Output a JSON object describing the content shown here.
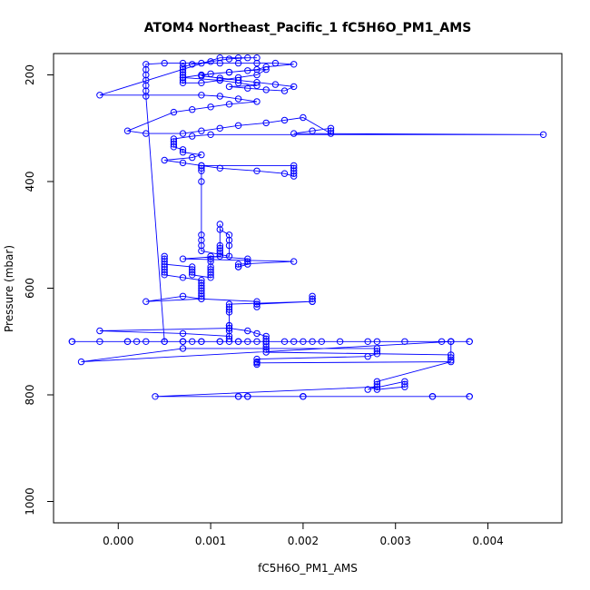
{
  "chart_data": {
    "type": "scatter",
    "title": "ATOM4 Northeast_Pacific_1 fC5H6O_PM1_AMS",
    "xlabel": "fC5H6O_PM1_AMS",
    "ylabel": "Pressure (mbar)",
    "xlim": [
      -0.0007,
      0.0048
    ],
    "ylim": [
      1040,
      160
    ],
    "y_reversed": true,
    "x_ticks": [
      0.0,
      0.001,
      0.002,
      0.003,
      0.004
    ],
    "x_tick_labels": [
      "0.000",
      "0.001",
      "0.002",
      "0.003",
      "0.004"
    ],
    "y_ticks": [
      200,
      400,
      600,
      800,
      1000
    ],
    "y_tick_labels": [
      "200",
      "400",
      "600",
      "800",
      "1000"
    ],
    "grid": false,
    "marker": "open-circle",
    "connected": true,
    "color": "#0000ff",
    "series": [
      {
        "x": [
          -0.0005,
          0.0007,
          0.0012,
          0.0009,
          0.0011,
          0.0014,
          0.0013,
          0.0007,
          0.0005,
          0.0003,
          0.0003,
          0.0003,
          0.0003,
          0.0003,
          0.0003,
          0.0003,
          0.0005,
          0.0007,
          0.0009,
          0.0011,
          0.0013,
          0.0015,
          0.0017,
          0.0019,
          0.0016,
          0.0015,
          0.0012,
          0.0009,
          0.0007,
          0.0011,
          0.0013,
          0.0015,
          0.0012,
          0.0014,
          0.0016,
          0.0018,
          0.0019,
          0.0017,
          0.0015,
          0.0013,
          0.0011,
          0.0009,
          0.001,
          0.0012,
          0.0014,
          0.0016,
          0.0015,
          0.0013,
          0.0011,
          0.0009,
          0.0007,
          0.0007,
          0.0007,
          0.0007,
          0.0007,
          0.0007,
          0.0007,
          0.0008,
          0.001,
          0.0012,
          0.0014,
          0.0015,
          0.0013,
          0.0011,
          -0.0002,
          0.0009,
          0.0011,
          0.0013,
          0.0015,
          0.0012,
          0.001,
          0.0008,
          0.0006,
          0.0001,
          0.0003,
          0.0007,
          0.0009,
          0.0011,
          0.0013,
          0.0016,
          0.0018,
          0.002,
          0.0023,
          0.0023,
          0.0023,
          0.0021,
          0.0019,
          0.0046,
          0.001,
          0.0008,
          0.0006,
          0.0006,
          0.0006,
          0.0006,
          0.0007,
          0.0007,
          0.0009,
          0.0008,
          0.0005,
          0.0007,
          0.0009,
          0.0011,
          0.0015,
          0.0018,
          0.0019,
          0.0019,
          0.0019,
          0.0019,
          0.0019,
          0.0009,
          0.0009,
          0.0009,
          0.0009,
          0.0009,
          0.0009,
          0.0009,
          0.0009,
          0.0012,
          0.0012,
          0.0012,
          0.0012,
          0.0011,
          0.0011,
          0.0011,
          0.0011,
          0.0011,
          0.0011,
          0.0011,
          0.0007,
          0.0019,
          0.0013,
          0.0013,
          0.0013,
          0.0014,
          0.0014,
          0.0014,
          0.001,
          0.001,
          0.001,
          0.001,
          0.001,
          0.001,
          0.001,
          0.001,
          0.0008,
          0.0008,
          0.0008,
          0.0008,
          0.0005,
          0.0005,
          0.0005,
          0.0005,
          0.0005,
          0.0005,
          0.0005,
          0.0005,
          0.0007,
          0.0009,
          0.0009,
          0.0009,
          0.0009,
          0.0009,
          0.0009,
          0.0009,
          0.0009,
          0.0003,
          0.0007,
          0.0009,
          0.0015,
          0.0015,
          0.0015,
          0.0015,
          0.0021,
          0.0021,
          0.0021,
          0.0021,
          0.0021,
          0.0012,
          0.0012,
          0.0012,
          0.0012,
          0.0012,
          0.0012,
          -0.0002,
          0.0007,
          0.0012,
          0.0012,
          0.0012,
          0.0012,
          0.0012,
          0.0012,
          0.0014,
          0.0015,
          0.0016,
          0.0016,
          0.0016,
          0.0016,
          0.0016,
          0.0016,
          0.0016,
          0.0036,
          0.0036,
          0.0036,
          0.0036,
          0.0036,
          0.0038,
          0.0038,
          0.0001,
          -0.0005,
          -0.0002,
          0.0001,
          0.0002,
          0.0003,
          0.0005,
          0.0007,
          0.0008,
          0.0009,
          0.0011,
          0.0013,
          0.0015,
          0.0016,
          0.0018,
          0.0019,
          0.002,
          0.0021,
          0.0022,
          0.0024,
          0.0027,
          0.0028,
          0.0031,
          0.0035,
          0.0036,
          -0.0004,
          0.0007,
          0.0028,
          0.0028,
          0.0028,
          0.0027,
          0.0015,
          0.0015,
          0.0015,
          0.0015,
          0.0036,
          0.0028,
          0.0028,
          0.0028,
          0.0028,
          0.0031,
          0.0031,
          0.0031,
          0.0027,
          0.0028,
          0.0004,
          0.0014,
          0.0014,
          0.0014,
          0.002,
          0.002,
          0.002,
          0.0034,
          0.0034,
          0.0034,
          0.0038,
          0.0038,
          0.0013,
          0.0013,
          0.0013
        ],
        "y": [
          700,
          700,
          700,
          700,
          700,
          700,
          700,
          700,
          700,
          240,
          230,
          220,
          210,
          200,
          190,
          180,
          178,
          178,
          178,
          178,
          178,
          178,
          178,
          180,
          185,
          190,
          195,
          200,
          205,
          210,
          215,
          220,
          222,
          225,
          228,
          230,
          222,
          218,
          214,
          210,
          206,
          202,
          198,
          195,
          192,
          190,
          200,
          205,
          210,
          215,
          215,
          210,
          205,
          200,
          195,
          190,
          185,
          180,
          175,
          170,
          168,
          168,
          168,
          168,
          238,
          238,
          240,
          245,
          250,
          255,
          260,
          265,
          270,
          305,
          310,
          310,
          305,
          300,
          295,
          290,
          285,
          280,
          310,
          305,
          300,
          305,
          310,
          312,
          312,
          315,
          320,
          325,
          330,
          335,
          340,
          345,
          350,
          355,
          360,
          365,
          370,
          375,
          380,
          385,
          390,
          385,
          380,
          375,
          370,
          370,
          375,
          380,
          400,
          500,
          510,
          520,
          530,
          540,
          520,
          510,
          500,
          490,
          480,
          520,
          525,
          530,
          535,
          540,
          545,
          550,
          555,
          560,
          560,
          555,
          550,
          545,
          540,
          545,
          550,
          560,
          565,
          570,
          575,
          580,
          575,
          570,
          565,
          560,
          555,
          550,
          545,
          540,
          560,
          565,
          570,
          575,
          580,
          585,
          590,
          595,
          600,
          605,
          610,
          615,
          620,
          625,
          615,
          620,
          625,
          630,
          635,
          630,
          625,
          620,
          615,
          620,
          625,
          630,
          635,
          640,
          645,
          670,
          675,
          680,
          685,
          690,
          695,
          680,
          675,
          670,
          675,
          680,
          685,
          690,
          695,
          700,
          705,
          710,
          715,
          720,
          725,
          730,
          735,
          700,
          700,
          700,
          700,
          700,
          700,
          700,
          700,
          700,
          700,
          700,
          700,
          700,
          700,
          700,
          700,
          700,
          700,
          700,
          700,
          700,
          700,
          700,
          700,
          700,
          700,
          700,
          700,
          700,
          738,
          713,
          713,
          718,
          723,
          728,
          733,
          738,
          743,
          740,
          738,
          775,
          780,
          785,
          790,
          785,
          780,
          775,
          790,
          785,
          803,
          803,
          803,
          803,
          803,
          803,
          803,
          803,
          803,
          803,
          803,
          803,
          803,
          803,
          803
        ]
      }
    ]
  }
}
